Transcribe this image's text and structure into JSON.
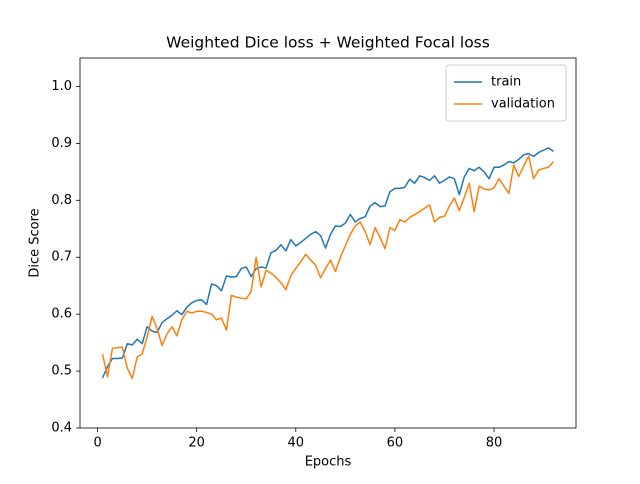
{
  "chart_data": {
    "type": "line",
    "title": "Weighted Dice loss + Weighted Focal loss",
    "x_label": "Epochs",
    "y_label": "Dice Score",
    "x": [
      1,
      2,
      3,
      4,
      5,
      6,
      7,
      8,
      9,
      10,
      11,
      12,
      13,
      14,
      15,
      16,
      17,
      18,
      19,
      20,
      21,
      22,
      23,
      24,
      25,
      26,
      27,
      28,
      29,
      30,
      31,
      32,
      33,
      34,
      35,
      36,
      37,
      38,
      39,
      40,
      41,
      42,
      43,
      44,
      45,
      46,
      47,
      48,
      49,
      50,
      51,
      52,
      53,
      54,
      55,
      56,
      57,
      58,
      59,
      60,
      61,
      62,
      63,
      64,
      65,
      66,
      67,
      68,
      69,
      70,
      71,
      72,
      73,
      74,
      75,
      76,
      77,
      78,
      79,
      80,
      81,
      82,
      83,
      84,
      85,
      86,
      87,
      88,
      89,
      90,
      91,
      92
    ],
    "series": [
      {
        "name": "train",
        "color": "#1f77b4",
        "values": [
          0.488,
          0.508,
          0.522,
          0.522,
          0.523,
          0.548,
          0.546,
          0.556,
          0.548,
          0.578,
          0.57,
          0.568,
          0.585,
          0.592,
          0.598,
          0.606,
          0.599,
          0.612,
          0.62,
          0.624,
          0.625,
          0.617,
          0.653,
          0.65,
          0.641,
          0.667,
          0.665,
          0.666,
          0.68,
          0.683,
          0.666,
          0.68,
          0.683,
          0.681,
          0.708,
          0.712,
          0.722,
          0.711,
          0.731,
          0.72,
          0.726,
          0.733,
          0.74,
          0.745,
          0.738,
          0.716,
          0.74,
          0.755,
          0.754,
          0.76,
          0.775,
          0.762,
          0.768,
          0.771,
          0.79,
          0.796,
          0.789,
          0.79,
          0.815,
          0.821,
          0.821,
          0.823,
          0.837,
          0.83,
          0.843,
          0.84,
          0.835,
          0.843,
          0.83,
          0.835,
          0.841,
          0.838,
          0.81,
          0.841,
          0.856,
          0.852,
          0.858,
          0.85,
          0.838,
          0.858,
          0.858,
          0.862,
          0.868,
          0.866,
          0.872,
          0.88,
          0.882,
          0.877,
          0.884,
          0.888,
          0.892,
          0.886
        ]
      },
      {
        "name": "validation",
        "color": "#ff7f0e",
        "values": [
          0.53,
          0.49,
          0.54,
          0.541,
          0.542,
          0.505,
          0.487,
          0.525,
          0.53,
          0.56,
          0.596,
          0.575,
          0.545,
          0.565,
          0.578,
          0.562,
          0.59,
          0.605,
          0.602,
          0.605,
          0.605,
          0.603,
          0.6,
          0.59,
          0.593,
          0.572,
          0.633,
          0.63,
          0.628,
          0.627,
          0.64,
          0.7,
          0.648,
          0.677,
          0.672,
          0.665,
          0.655,
          0.643,
          0.668,
          0.68,
          0.692,
          0.705,
          0.695,
          0.686,
          0.664,
          0.68,
          0.695,
          0.675,
          0.7,
          0.72,
          0.74,
          0.755,
          0.762,
          0.745,
          0.722,
          0.752,
          0.735,
          0.715,
          0.752,
          0.747,
          0.766,
          0.762,
          0.77,
          0.775,
          0.78,
          0.786,
          0.792,
          0.762,
          0.77,
          0.772,
          0.79,
          0.804,
          0.782,
          0.805,
          0.83,
          0.78,
          0.825,
          0.82,
          0.818,
          0.822,
          0.838,
          0.825,
          0.812,
          0.862,
          0.842,
          0.86,
          0.878,
          0.838,
          0.853,
          0.856,
          0.858,
          0.868
        ]
      }
    ],
    "xlim": [
      -3.55,
      96.55
    ],
    "xticks": [
      0,
      20,
      40,
      60,
      80
    ],
    "ylim": [
      0.4,
      1.05
    ],
    "yticks": [
      0.4,
      0.5,
      0.6,
      0.7,
      0.8,
      0.9,
      {
        "value": 1,
        "label": "1.0"
      }
    ],
    "legend": "upper right"
  }
}
